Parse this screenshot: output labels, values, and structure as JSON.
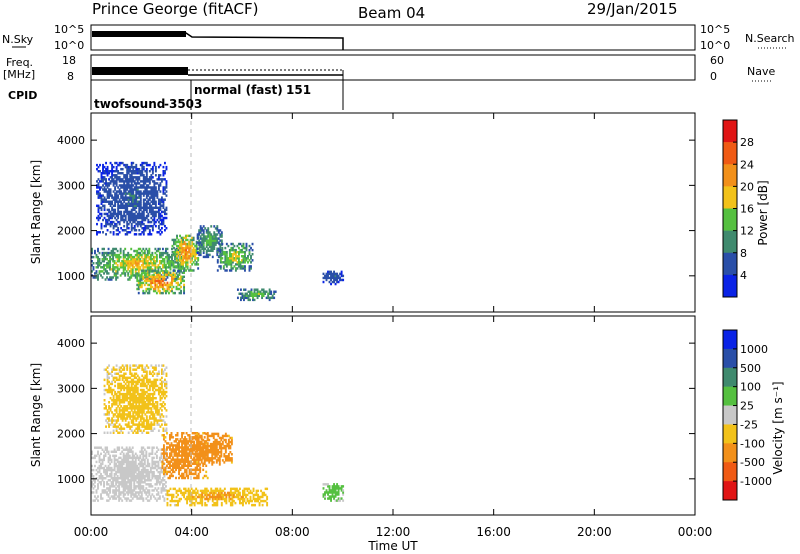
{
  "header": {
    "station": "Prince George (fitACF)",
    "beam": "Beam 04",
    "date": "29/Jan/2015"
  },
  "top_panels": {
    "nsky_label": "N.Sky",
    "nsky_ticks": [
      "10^5",
      "10^0"
    ],
    "freq_label_line1": "Freq.",
    "freq_label_line2": "[MHz]",
    "freq_ticks": [
      "18",
      "8"
    ],
    "cpid_label": "CPID",
    "nsearch_label": "N.Search",
    "nsearch_ticks": [
      "10^5",
      "10^0"
    ],
    "nave_label": "Nave",
    "nave_ticks": [
      "60",
      "0"
    ],
    "cpid_segments": [
      {
        "name": "twofsound",
        "id": "-3503"
      },
      {
        "name": "normal (fast)",
        "id": "151"
      }
    ]
  },
  "x_axis": {
    "label": "Time UT",
    "ticks": [
      "00:00",
      "04:00",
      "08:00",
      "12:00",
      "16:00",
      "20:00",
      "00:00"
    ]
  },
  "colors": {
    "power": [
      "#0a23e6",
      "#2a4fa8",
      "#3f8a6e",
      "#55c040",
      "#f2c21a",
      "#f2901a",
      "#f05a14",
      "#e01414"
    ],
    "velocity": [
      "#e01414",
      "#f05a14",
      "#f2901a",
      "#f2c21a",
      "#c8c8c8",
      "#55c040",
      "#3f8a6e",
      "#2a4fa8",
      "#0a23e6"
    ]
  },
  "chart_data": [
    {
      "type": "heatmap",
      "quantity": "power",
      "ylabel": "Slant Range [km]",
      "yticks": [
        "4000",
        "3000",
        "2000",
        "1000"
      ],
      "ylim": [
        200,
        4600
      ],
      "xlabel": "Time UT",
      "xlim_hours": [
        0,
        24
      ],
      "colorbar_label": "Power [dB]",
      "colorbar_ticks": [
        "28",
        "24",
        "20",
        "16",
        "12",
        "8",
        "4"
      ],
      "colorbar_range": [
        0,
        32
      ],
      "data_coverage_hours": [
        0,
        10
      ],
      "regions": [
        {
          "t0": 0.0,
          "t1": 3.6,
          "r0": 900,
          "r1": 1600,
          "level": 20
        },
        {
          "t0": 1.8,
          "t1": 3.7,
          "r0": 600,
          "r1": 1100,
          "level": 26
        },
        {
          "t0": 3.2,
          "t1": 4.3,
          "r0": 1100,
          "r1": 1900,
          "level": 24
        },
        {
          "t0": 4.2,
          "t1": 5.2,
          "r0": 1400,
          "r1": 2100,
          "level": 14
        },
        {
          "t0": 5.0,
          "t1": 6.4,
          "r0": 1100,
          "r1": 1700,
          "level": 18
        },
        {
          "t0": 5.8,
          "t1": 7.3,
          "r0": 450,
          "r1": 700,
          "level": 16
        },
        {
          "t0": 0.2,
          "t1": 3.0,
          "r0": 1900,
          "r1": 3500,
          "level": 8
        },
        {
          "t0": 9.2,
          "t1": 10.0,
          "r0": 800,
          "r1": 1100,
          "level": 8
        }
      ]
    },
    {
      "type": "heatmap",
      "quantity": "velocity",
      "ylabel": "Slant Range [km]",
      "yticks": [
        "4000",
        "3000",
        "2000",
        "1000"
      ],
      "ylim": [
        200,
        4600
      ],
      "xlabel": "Time UT",
      "xlim_hours": [
        0,
        24
      ],
      "colorbar_label": "Velocity [m s⁻¹]",
      "colorbar_ticks": [
        "1000",
        "500",
        "100",
        "25",
        "-25",
        "-100",
        "-500",
        "-1000"
      ],
      "colorbar_range": [
        -1200,
        1200
      ],
      "data_coverage_hours": [
        0,
        10
      ],
      "regions": [
        {
          "t0": 0.0,
          "t1": 3.0,
          "r0": 500,
          "r1": 1700,
          "level": 0
        },
        {
          "t0": 2.8,
          "t1": 4.6,
          "r0": 1000,
          "r1": 2000,
          "level": -300
        },
        {
          "t0": 4.0,
          "t1": 5.6,
          "r0": 1300,
          "r1": 2000,
          "level": -300
        },
        {
          "t0": 3.0,
          "t1": 7.0,
          "r0": 400,
          "r1": 800,
          "level": -120
        },
        {
          "t0": 0.5,
          "t1": 3.0,
          "r0": 2000,
          "r1": 3500,
          "level": -60
        },
        {
          "t0": 9.2,
          "t1": 10.0,
          "r0": 500,
          "r1": 900,
          "level": 60
        }
      ]
    }
  ]
}
